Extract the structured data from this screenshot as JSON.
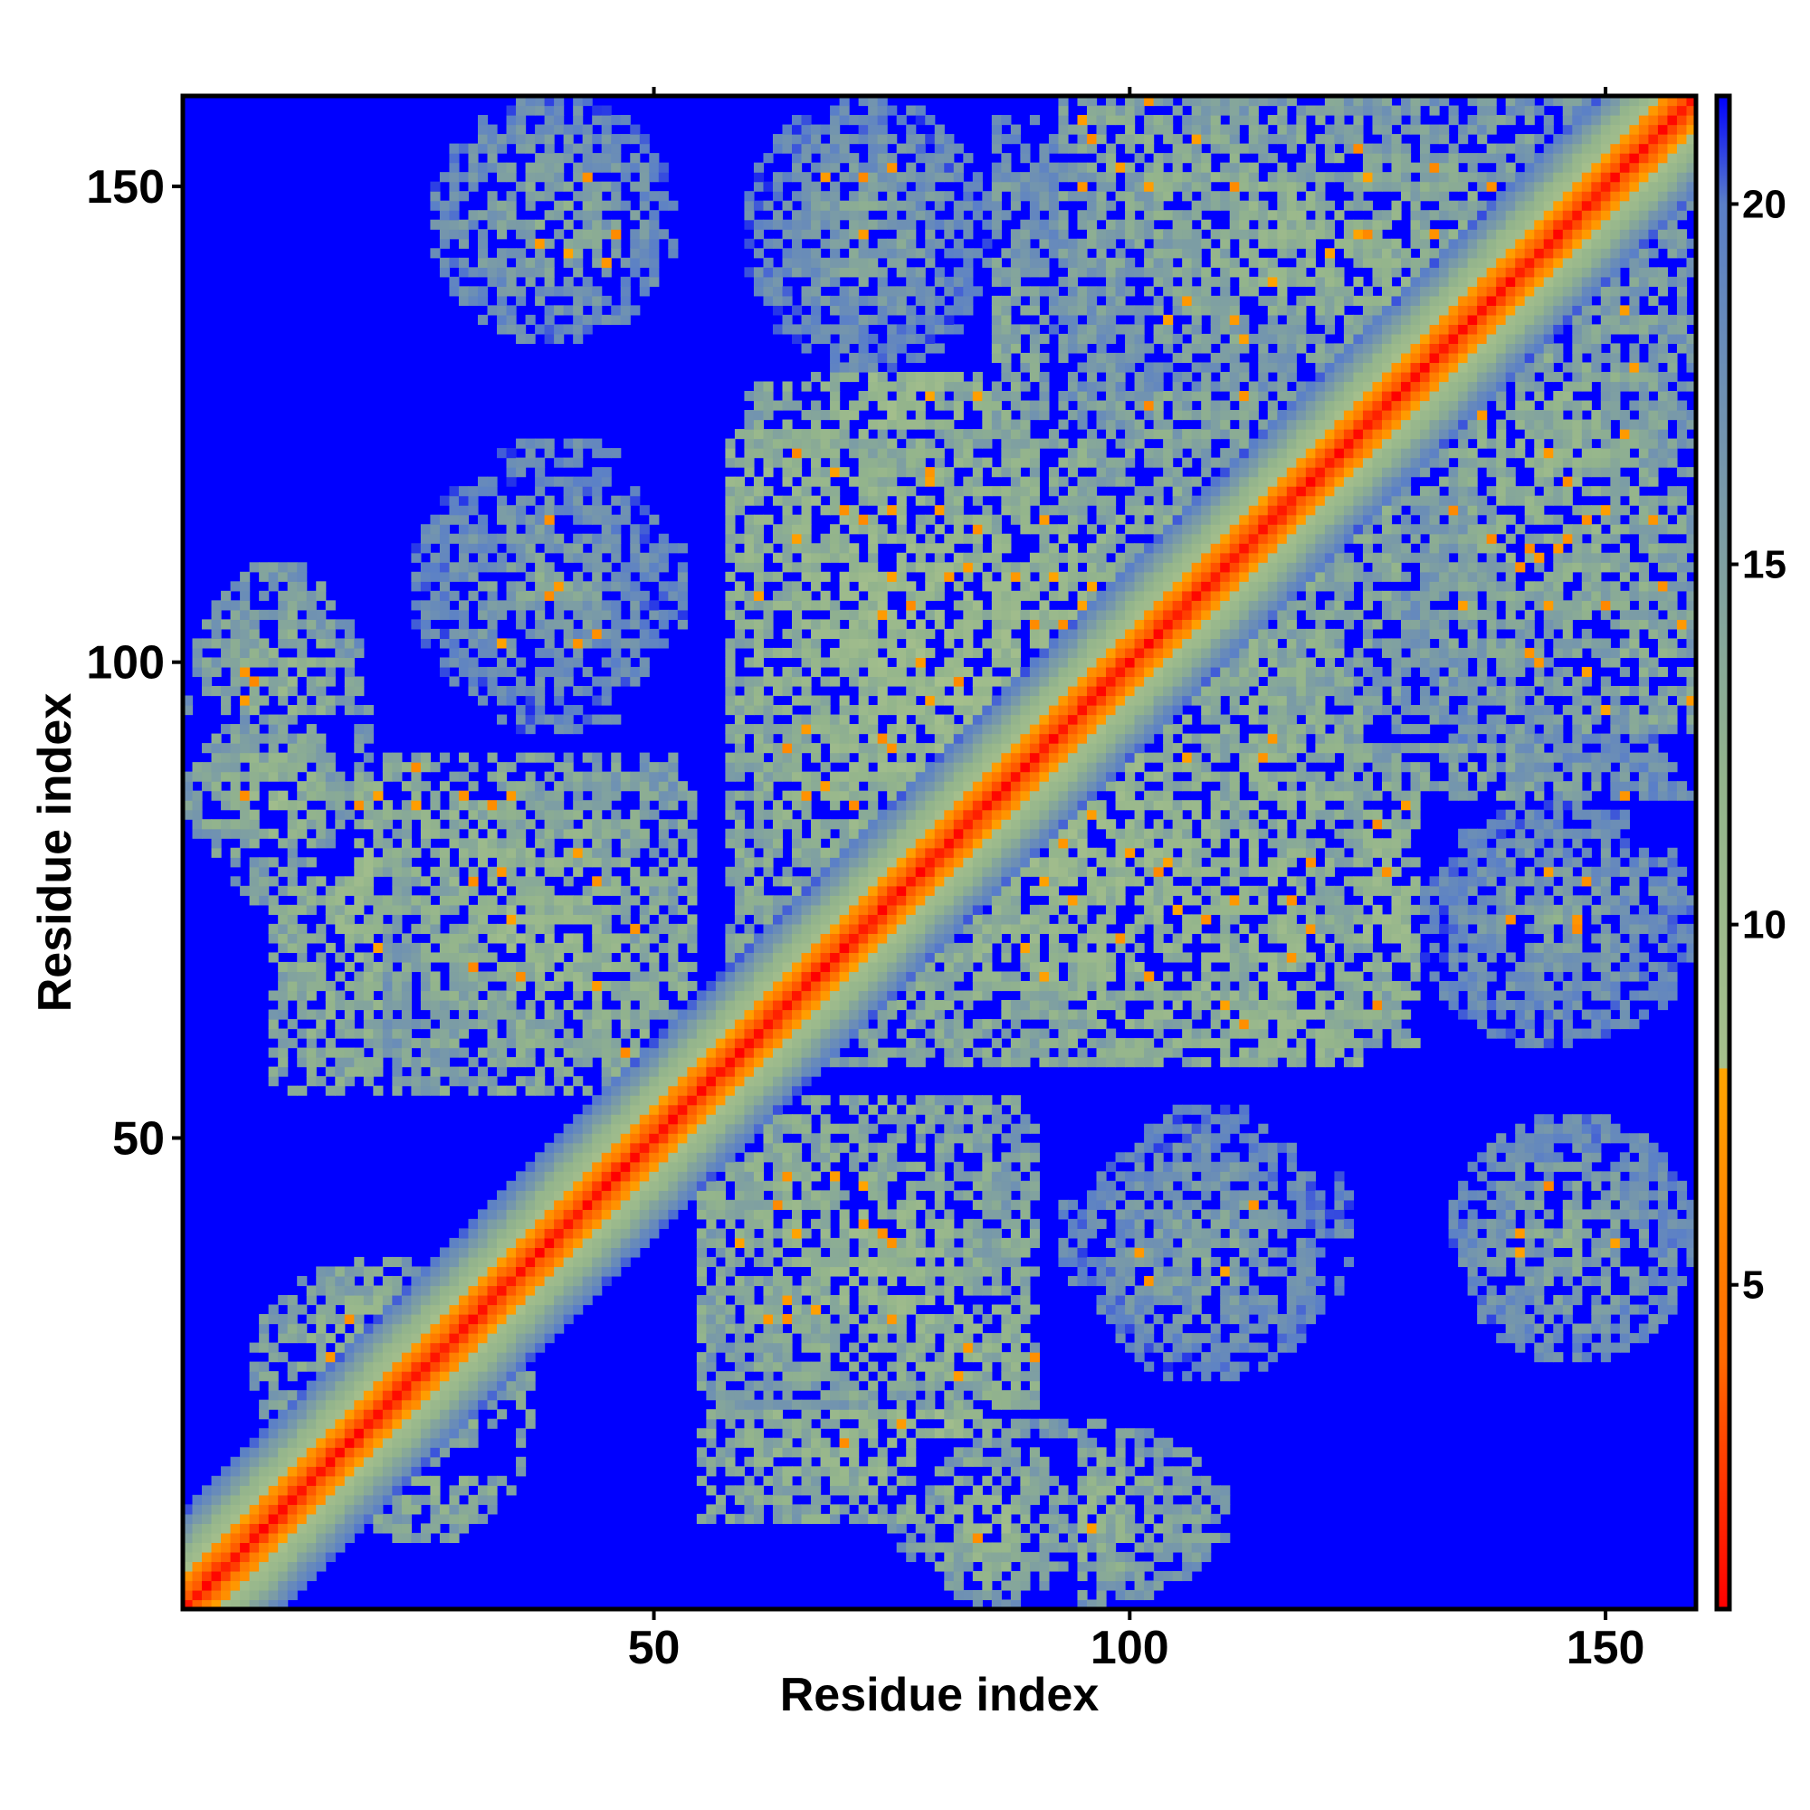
{
  "chart_data": {
    "type": "heatmap",
    "title": "",
    "xlabel": "Residue index",
    "ylabel": "Residue index",
    "xlim": [
      1,
      159
    ],
    "ylim": [
      1,
      159
    ],
    "x_ticks": [
      50,
      100,
      150
    ],
    "y_ticks": [
      50,
      100,
      150
    ],
    "colorbar": {
      "ticks": [
        5,
        10,
        15,
        20
      ],
      "range": [
        0.5,
        21.5
      ],
      "stops": [
        {
          "value": 0.5,
          "color": "#ff0000"
        },
        {
          "value": 4.0,
          "color": "#ff6a00"
        },
        {
          "value": 8.0,
          "color": "#ffa500"
        },
        {
          "value": 8.01,
          "color": "#a6c08c"
        },
        {
          "value": 12.0,
          "color": "#93b48c"
        },
        {
          "value": 16.0,
          "color": "#7899a9"
        },
        {
          "value": 20.0,
          "color": "#5a7fc8"
        },
        {
          "value": 21.5,
          "color": "#0000ff"
        }
      ]
    },
    "background_color": "#0000ff",
    "diagonal_band": [
      {
        "offset": 0,
        "value": 1
      },
      {
        "offset": 1,
        "value": 3
      },
      {
        "offset": 2,
        "value": 5
      },
      {
        "offset": 3,
        "value": 7
      },
      {
        "offset": 4,
        "value": 9
      },
      {
        "offset": 5,
        "value": 10.5
      },
      {
        "offset": 6,
        "value": 12
      },
      {
        "offset": 7,
        "value": 14
      },
      {
        "offset": 8,
        "value": 16
      },
      {
        "offset": 9,
        "value": 18
      },
      {
        "offset": 10,
        "value": 20
      }
    ],
    "contact_regions": [
      {
        "x": [
          1,
          18
        ],
        "y": [
          78,
          94
        ],
        "level": 10.5
      },
      {
        "x": [
          22,
          52
        ],
        "y": [
          56,
          90
        ],
        "level": 11,
        "antidiagonal": true
      },
      {
        "x": [
          25,
          52
        ],
        "y": [
          95,
          121
        ],
        "level": 14
      },
      {
        "x": [
          27,
          52
        ],
        "y": [
          134,
          159
        ],
        "level": 13.5
      },
      {
        "x": [
          60,
          85
        ],
        "y": [
          131,
          159
        ],
        "level": 14
      },
      {
        "x": [
          58,
          112
        ],
        "y": [
          62,
          124
        ],
        "level": 10,
        "antidiagonal": true
      },
      {
        "x": [
          93,
          150
        ],
        "y": [
          129,
          159
        ],
        "level": 12,
        "antidiagonal": true
      },
      {
        "x": [
          8,
          35
        ],
        "y": [
          15,
          37
        ],
        "level": 10
      },
      {
        "x": [
          55,
          88
        ],
        "y": [
          10,
          54
        ],
        "level": 10,
        "antidiagonal": true
      },
      {
        "x": [
          75,
          110
        ],
        "y": [
          1,
          20
        ],
        "level": 11
      },
      {
        "x": [
          93,
          123
        ],
        "y": [
          27,
          53
        ],
        "level": 13.5
      },
      {
        "x": [
          108,
          145
        ],
        "y": [
          60,
          91
        ],
        "level": 11,
        "antidiagonal": true
      },
      {
        "x": [
          118,
          159
        ],
        "y": [
          93,
          128
        ],
        "level": 12,
        "antidiagonal": true
      },
      {
        "x": [
          130,
          159
        ],
        "y": [
          70,
          95
        ],
        "level": 13.5
      },
      {
        "x": [
          135,
          159
        ],
        "y": [
          28,
          52
        ],
        "level": 13.5
      }
    ]
  }
}
